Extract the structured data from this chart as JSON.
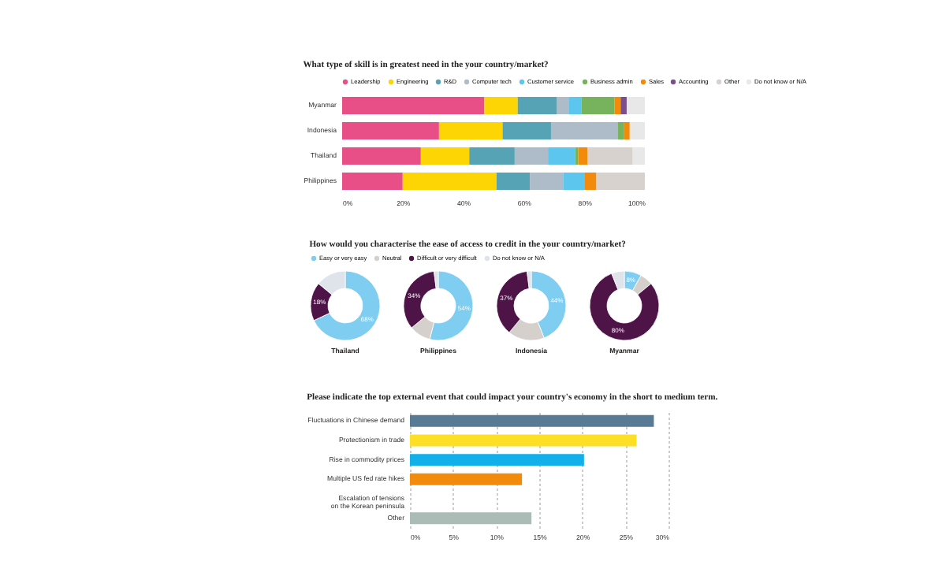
{
  "chart_data": [
    {
      "type": "bar",
      "orientation": "horizontal",
      "stacked": true,
      "title": "What type of skill is in greatest need in the your country/market?",
      "legend": "top",
      "categories": [
        "Myanmar",
        "Indonesia",
        "Thailand",
        "Philippines"
      ],
      "xlim": [
        0,
        100
      ],
      "xticks": [
        {
          "value": 0,
          "label": "0%"
        },
        {
          "value": 20,
          "label": "20%"
        },
        {
          "value": 40,
          "label": "40%"
        },
        {
          "value": 60,
          "label": "60%"
        },
        {
          "value": 80,
          "label": "80%"
        },
        {
          "value": 100,
          "label": "100%"
        }
      ],
      "series": [
        {
          "name": "Leadership",
          "color": "#e84f86",
          "values": [
            47,
            32,
            26,
            20
          ]
        },
        {
          "name": "Engineering",
          "color": "#fdd504",
          "values": [
            11,
            21,
            16,
            31
          ]
        },
        {
          "name": "R&D",
          "color": "#55a3b4",
          "values": [
            13,
            16,
            15,
            11
          ]
        },
        {
          "name": "Computer tech",
          "color": "#aebbc8",
          "values": [
            4,
            22,
            11,
            11
          ]
        },
        {
          "name": "Customer service",
          "color": "#5dc6ef",
          "values": [
            4,
            0,
            9,
            7
          ]
        },
        {
          "name": "Business admin",
          "color": "#76b35c",
          "values": [
            11,
            2,
            1,
            0
          ]
        },
        {
          "name": "Sales",
          "color": "#f28a0c",
          "values": [
            2,
            2,
            3,
            4
          ]
        },
        {
          "name": "Accounting",
          "color": "#7a4f8c",
          "values": [
            2,
            0,
            0,
            0
          ]
        },
        {
          "name": "Other",
          "color": "#d8d2cf",
          "values": [
            0,
            0,
            15,
            16
          ]
        },
        {
          "name": "Do not know or N/A",
          "color": "#e8e8e8",
          "values": [
            6,
            5,
            4,
            0
          ]
        }
      ]
    },
    {
      "type": "donut",
      "title": "How would you characterise the ease of access to credit in the your country/market?",
      "legend": "top",
      "categories": [
        "Easy or very easy",
        "Neutral",
        "Difficult or very difficult",
        "Do not know or N/A"
      ],
      "colors": [
        "#7fcdf0",
        "#d6d0cc",
        "#4e1448",
        "#dfe3ea"
      ],
      "series": [
        {
          "name": "Thailand",
          "values": [
            68,
            0,
            18,
            14
          ],
          "value_labels": [
            "68%",
            null,
            "18%",
            null
          ]
        },
        {
          "name": "Philippines",
          "values": [
            54,
            10,
            34,
            2
          ],
          "value_labels": [
            "54%",
            null,
            "34%",
            null
          ]
        },
        {
          "name": "Indonesia",
          "values": [
            44,
            17,
            37,
            2
          ],
          "value_labels": [
            "44%",
            null,
            "37%",
            null
          ]
        },
        {
          "name": "Myanmar",
          "values": [
            8,
            6,
            80,
            6
          ],
          "value_labels": [
            "8%",
            null,
            "80%",
            null
          ]
        }
      ]
    },
    {
      "type": "bar",
      "orientation": "horizontal",
      "title": "Please indicate the top external event that could impact your country's economy in the short to medium term.",
      "grid": "x",
      "categories": [
        "Fluctuations in Chinese demand",
        "Protectionism in trade",
        "Rise in commodity prices",
        "Multiple US fed rate hikes",
        "Escalation of tensions\non the Korean peninsula",
        "Other"
      ],
      "values": [
        28.3,
        26.3,
        20.2,
        13,
        0,
        14.1
      ],
      "colors": [
        "#587a94",
        "#fde025",
        "#12b0ea",
        "#f28a0c",
        "#cccccc",
        "#abbbb6"
      ],
      "xlim": [
        0,
        30
      ],
      "xticks": [
        {
          "value": 0,
          "label": "0%"
        },
        {
          "value": 5,
          "label": "5%"
        },
        {
          "value": 10,
          "label": "10%"
        },
        {
          "value": 15,
          "label": "15%"
        },
        {
          "value": 20,
          "label": "20%"
        },
        {
          "value": 25,
          "label": "25%"
        },
        {
          "value": 30,
          "label": "30%"
        }
      ]
    }
  ]
}
